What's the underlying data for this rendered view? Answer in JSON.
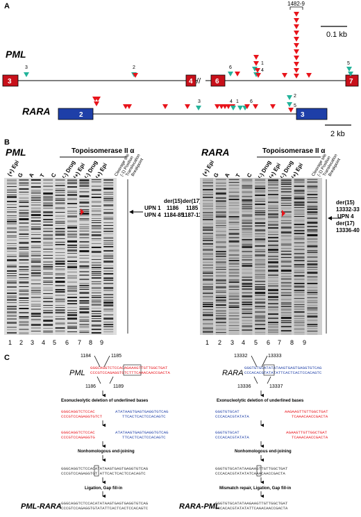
{
  "panel_labels": {
    "a": "A",
    "b": "B",
    "c": "C"
  },
  "panelA": {
    "pml_label": "PML",
    "rara_label": "RARA",
    "scale_top": "0.1 kb",
    "scale_bottom": "2 kb",
    "cluster_label": "1482-9",
    "pml_exons": [
      "3",
      "4",
      "6",
      "7"
    ],
    "rara_exons": [
      "2",
      "3"
    ],
    "pml_site_numbers": [
      "3",
      "2",
      "6",
      "1",
      "4",
      "5"
    ],
    "rara_site_numbers": [
      "3",
      "4",
      "1",
      "6",
      "2",
      "5"
    ],
    "colors": {
      "breakpoint_arrow": "#e8141b",
      "cleavage_arrow": "#22b39a",
      "pml_exon": "#c8101a",
      "rara_exon": "#1e3fa8"
    }
  },
  "panelB": {
    "left": {
      "title": "PML",
      "topo_label": "Topoisomerase II α",
      "lane_headers": [
        "(+) Epi",
        "G",
        "A",
        "T",
        "C",
        "(-) Drug",
        "(+) Epi",
        "(-) Drug",
        "(+) Epi"
      ],
      "side_headers": [
        "Cleavage site",
        "(-1) Position",
        "Translocation",
        "Breakpoint"
      ],
      "annotation_rows": [
        [
          "",
          "der(15)",
          "der(17)"
        ],
        [
          "UPN 1",
          "1186",
          "1185"
        ],
        [
          "UPN 4",
          "1184-85",
          "1187-1191"
        ]
      ],
      "lane_numbers": [
        "1",
        "2",
        "3",
        "4",
        "5",
        "6",
        "7",
        "8",
        "9"
      ]
    },
    "right": {
      "title": "RARA",
      "topo_label": "Topoisomerase II α",
      "lane_headers": [
        "(+) Epi",
        "G",
        "A",
        "T",
        "C",
        "(-) Drug",
        "(+) Epi",
        "(-) Drug",
        "(+) Epi"
      ],
      "side_headers": [
        "Cleavage site",
        "(-1) Position",
        "Translocation",
        "Breakpoint"
      ],
      "annotation_lines": [
        "der(15)",
        "13332-33",
        "UPN 4",
        "der(17)",
        "13336-40"
      ],
      "lane_numbers": [
        "1",
        "2",
        "3",
        "4",
        "5",
        "6",
        "7",
        "8",
        "9"
      ]
    }
  },
  "panelC": {
    "left": {
      "gene": "PML",
      "positions": [
        "1184",
        "1185",
        "1186",
        "1189"
      ],
      "seq1_top": "GGGCAGGTCTCCACAGAAAGTTGTTGGCTGAT",
      "seq1_bot": "CCCGTCCAGAGGTGTCTTTCAAACAACCGACTA",
      "step1": "Exonucleolytic deletion of underlined bases",
      "seq2_a_top": "GGGCAGGTCTCCAC",
      "seq2_a_bot": "CCCGTCCAGAGGTGTCT",
      "seq2_b_top": "ATATAAGTGAGTGAGGTGTCAG",
      "seq2_b_bot": "TTCACTCACTCCACAGTC",
      "seq3_a_top": "GGGCAGGTCTCCAC",
      "seq3_a_bot": "CCCGTCCAGAGGTG",
      "seq3_b_top": "ATATAAGTGAGTGAGGTGTCAG",
      "seq3_b_bot": "TTCACTCACTCCACAGTC",
      "step2": "Nonhomologous end-joining",
      "seq4_top": "GGGCAGGTCTCCACATATAAGTGAGTGAGGTGTCAG",
      "seq4_bot": "CCCGTCCAGAGGTGT ATTCACTCACTCCACAGTC",
      "step3": "Ligation, Gap fill-in",
      "product": "PML-RARA",
      "seq5_top": "GGGCAGGTCTCCACATATAAGTGAGTGAGGTGTCAG",
      "seq5_bot": "CCCGTCCAGAGGTGTATATTCACTCACTCCACAGTC"
    },
    "right": {
      "gene": "RARA",
      "positions": [
        "13332",
        "13333",
        "13336",
        "13337"
      ],
      "seq1_top": "GGGTGTGCATATATAAGTGAGTGAGGTGTCAG",
      "seq1_bot": "CCCACACGTATATATTCACTCACTCCACAGTC",
      "step1": "Exonucleolytic deletion of underlined bases",
      "seq2_a_top": "GGGTGTGCAT",
      "seq2_a_bot": "CCCACACGTATATA",
      "seq2_b_top": "AAGAAGTTGTTGGCTGAT",
      "seq2_b_bot": "TCAAACAACCGACTA",
      "seq3_a_top": "GGGTGTGCAT",
      "seq3_a_bot": "CCCACACGTATATA",
      "seq3_b_top": "AGAAGTTGTTGGCTGAT",
      "seq3_b_bot": "TCAAACAACCGACTA",
      "step2": "Nonhomologous end-joining",
      "seq4_top": "GGGTGTGCATATAAGAAGTTGTTGGCTGAT",
      "seq4_bot": "CCCACACGTATATATCAAACAACCGACTA",
      "step3": "Mismatch repair, Ligation, Gap fill-in",
      "product": "RARA-PML",
      "seq5_top": "GGGTGTGCATATAAGAAGTTGTTGGCTGAT",
      "seq5_bot": "CCCACACGTATATATTCAAACAACCGACTA"
    }
  }
}
